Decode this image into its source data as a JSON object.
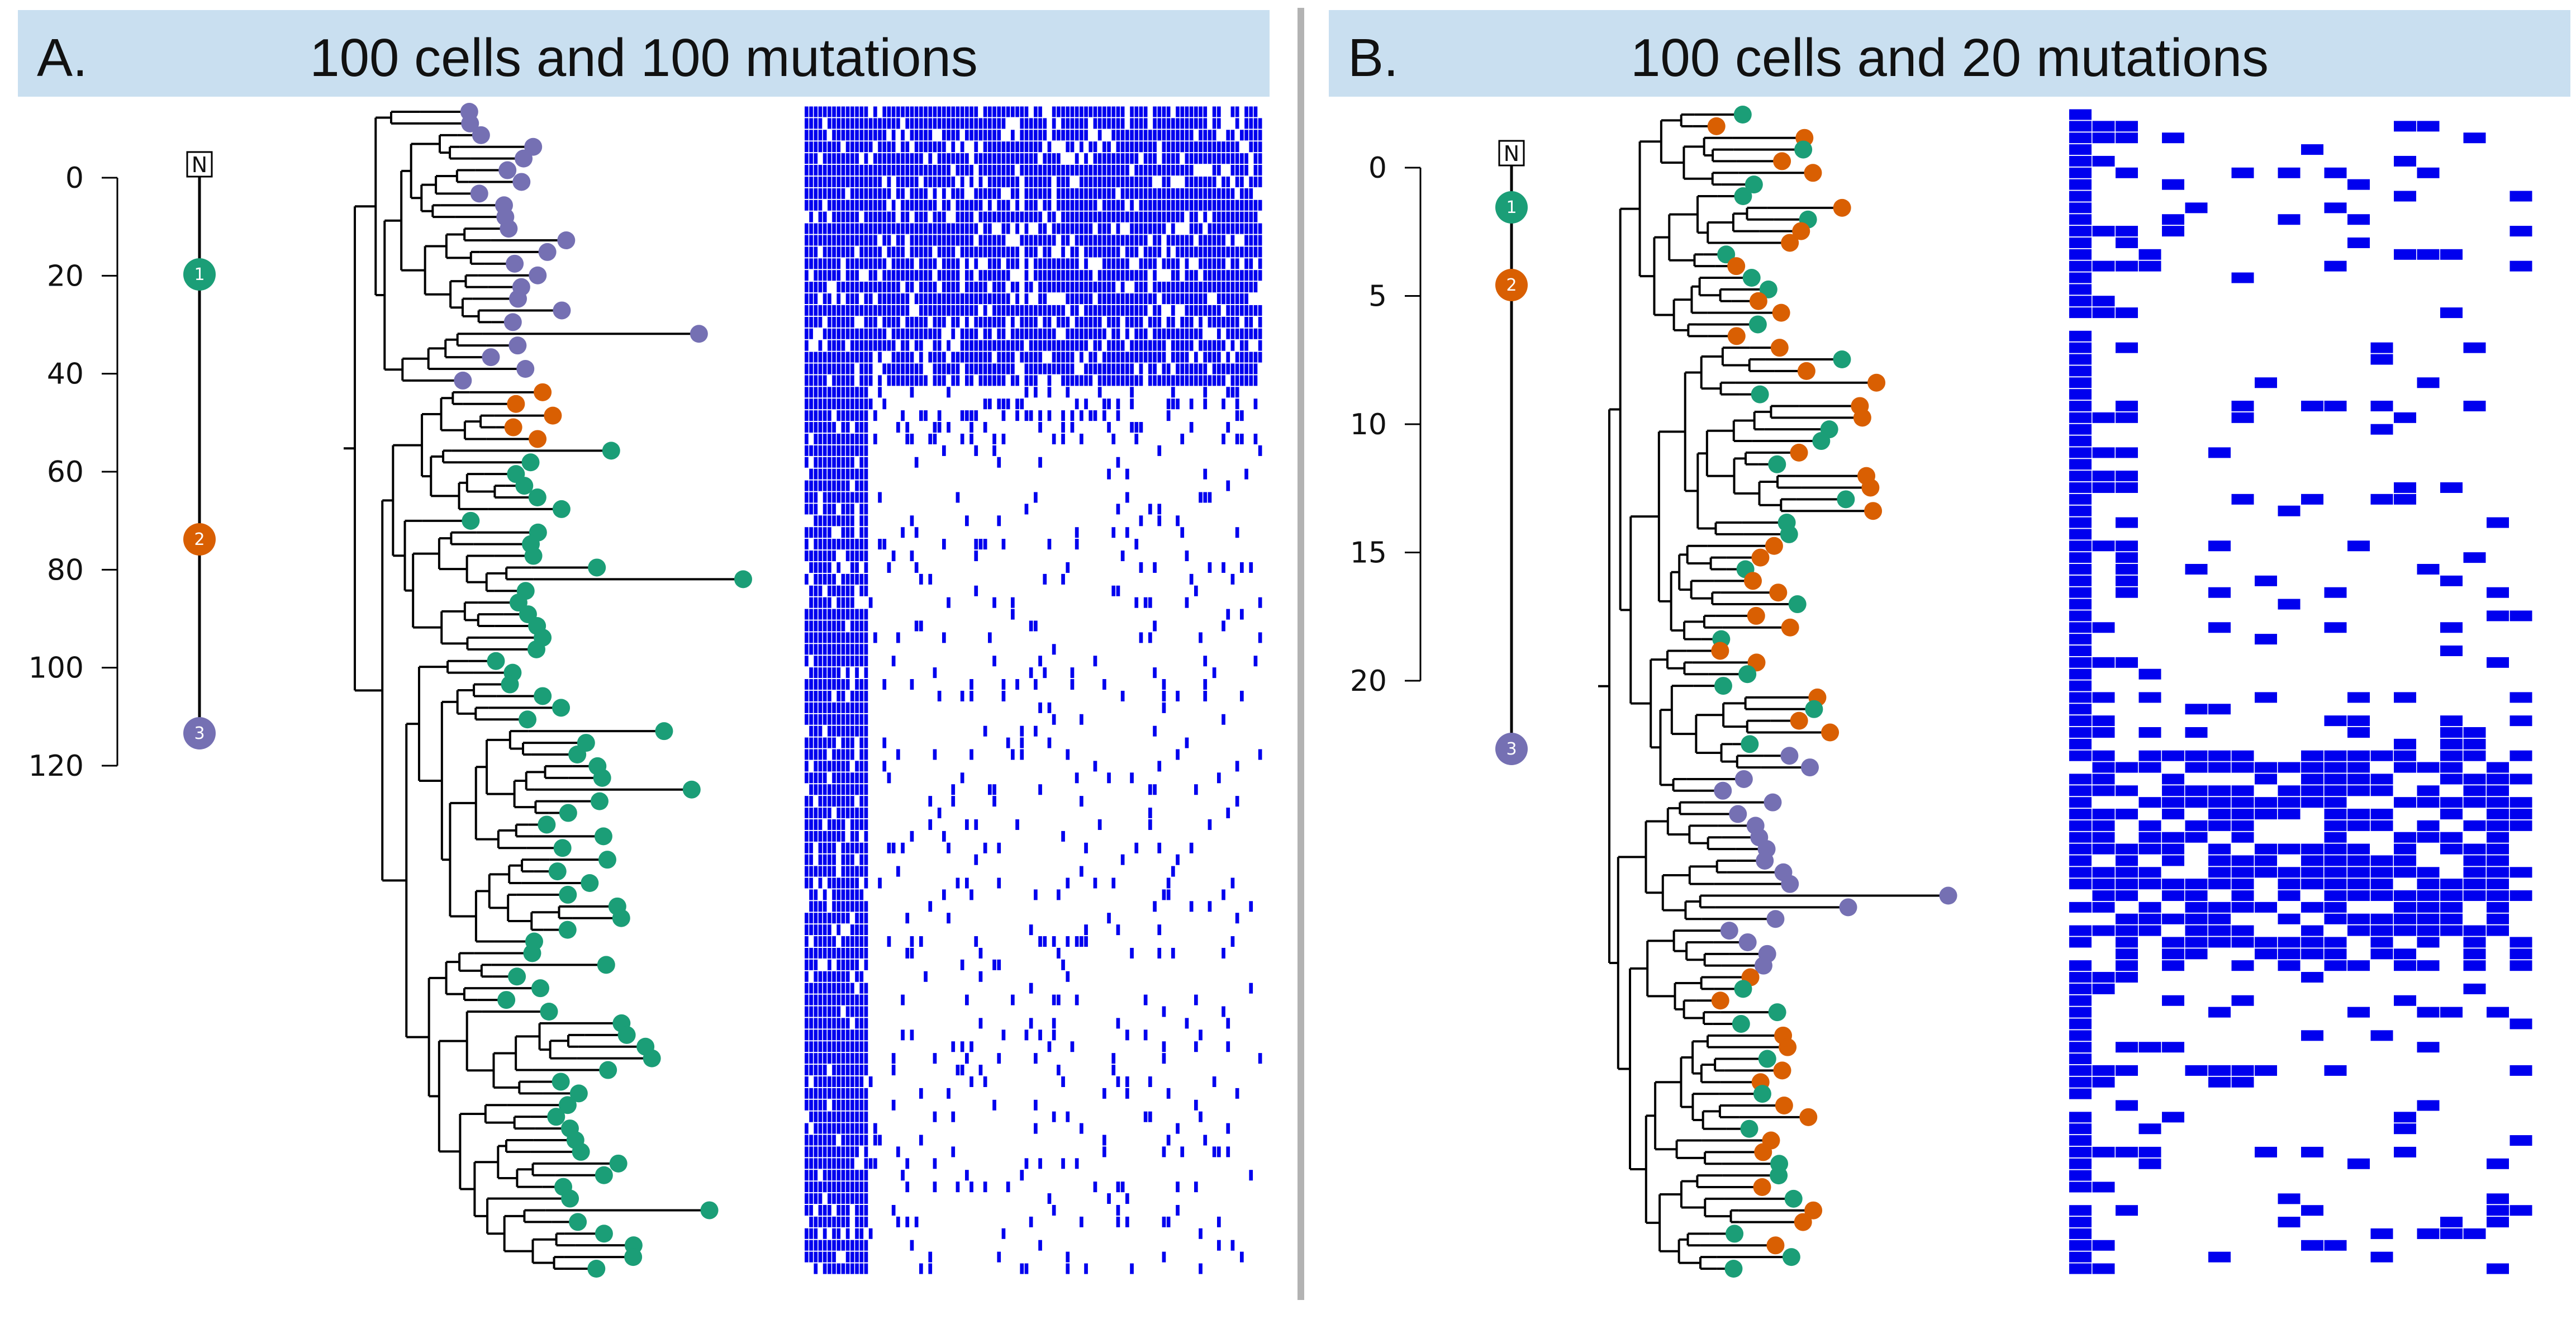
{
  "colors": {
    "header_bg": "#c9dff0",
    "divider": "#b3b3b3",
    "clone_1": "#1b9e77",
    "clone_2": "#d95f02",
    "clone_3": "#7570b3",
    "mutation_cell": "#0000ee"
  },
  "panels": [
    {
      "letter": "A.",
      "title": "100 cells and 100 mutations",
      "n_cells": 100,
      "n_mutations": 100,
      "clone_tree": {
        "root_label": "N",
        "nodes": [
          {
            "label": "1",
            "clone": 1
          },
          {
            "label": "2",
            "clone": 2
          },
          {
            "label": "3",
            "clone": 3
          }
        ],
        "axis_ticks": [
          "0",
          "20",
          "40",
          "60",
          "80",
          "100",
          "120"
        ]
      }
    },
    {
      "letter": "B.",
      "title": "100 cells and 20 mutations",
      "n_cells": 100,
      "n_mutations": 20,
      "clone_tree": {
        "root_label": "N",
        "nodes": [
          {
            "label": "1",
            "clone": 1
          },
          {
            "label": "2",
            "clone": 2
          },
          {
            "label": "3",
            "clone": 3
          }
        ],
        "axis_ticks": [
          "0",
          "5",
          "10",
          "15",
          "20"
        ]
      }
    }
  ]
}
